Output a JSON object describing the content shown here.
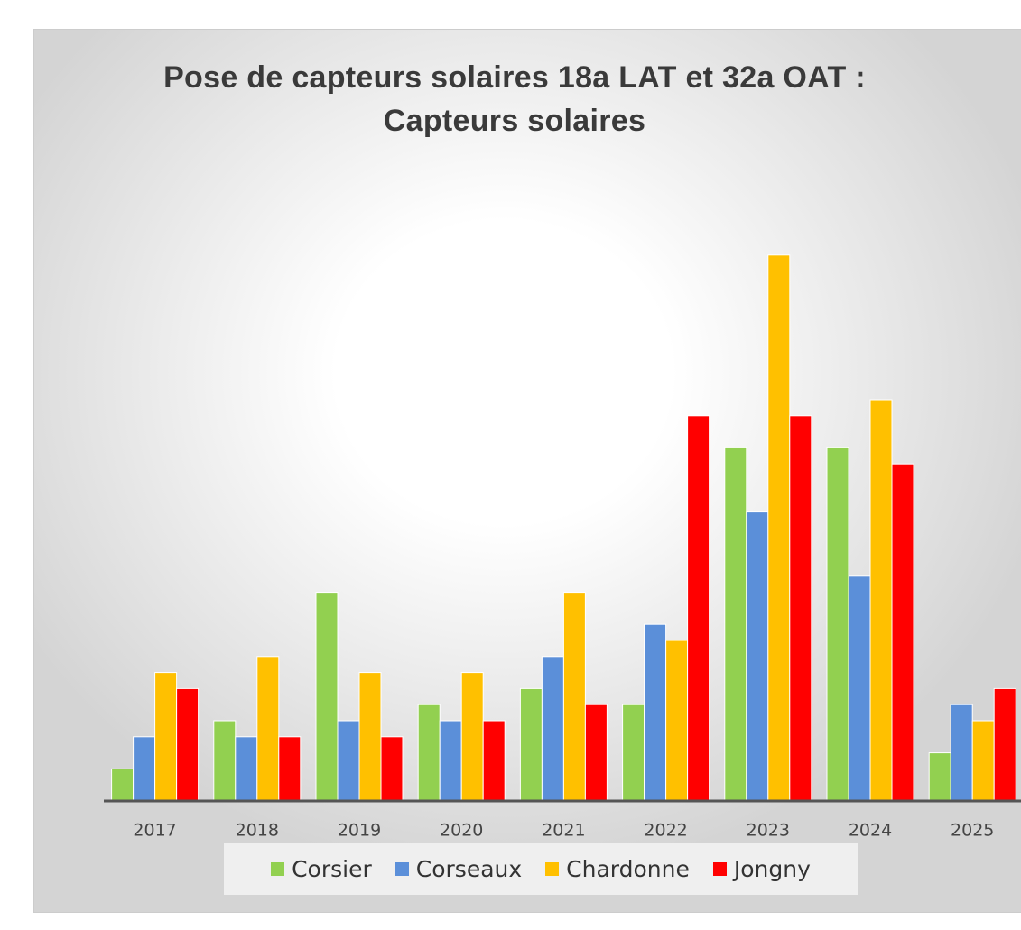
{
  "chart_data": {
    "type": "bar",
    "title": "Pose de capteurs solaires 18a LAT et 32a OAT : Capteurs solaires",
    "categories": [
      "2017",
      "2018",
      "2019",
      "2020",
      "2021",
      "2022",
      "2023",
      "2024",
      "2025"
    ],
    "series": [
      {
        "name": "Corsier",
        "color": "#92d050",
        "values": [
          2,
          5,
          13,
          6,
          7,
          6,
          22,
          22,
          3
        ]
      },
      {
        "name": "Corseaux",
        "color": "#5b8fd9",
        "values": [
          4,
          4,
          5,
          5,
          9,
          11,
          18,
          14,
          6
        ]
      },
      {
        "name": "Chardonne",
        "color": "#ffc000",
        "values": [
          8,
          9,
          8,
          8,
          13,
          10,
          34,
          25,
          5
        ]
      },
      {
        "name": "Jongny",
        "color": "#ff0000",
        "values": [
          7,
          4,
          4,
          5,
          6,
          24,
          24,
          21,
          7
        ]
      }
    ],
    "ylim": [
      0,
      40
    ],
    "legend": "bottom"
  }
}
